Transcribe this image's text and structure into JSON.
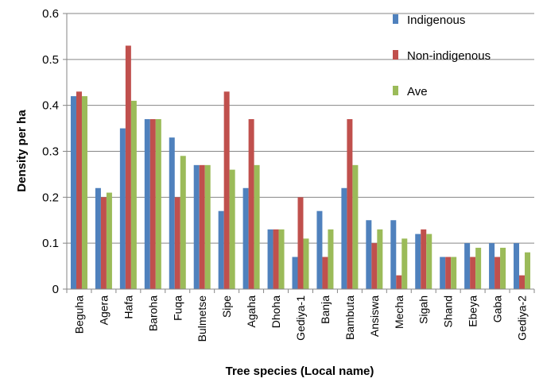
{
  "chart_data": {
    "type": "bar",
    "title": "",
    "xlabel": "Tree species (Local name)",
    "ylabel": "Density per ha",
    "ylim": [
      0,
      0.6
    ],
    "yticks": [
      "0",
      "0.1",
      "0.2",
      "0.3",
      "0.4",
      "0.5",
      "0.6"
    ],
    "grid": true,
    "legend_position": "top-right",
    "categories": [
      "Beguha",
      "Agera",
      "Hafa",
      "Baroha",
      "Fuqa",
      "Bulmetse",
      "Sipe",
      "Agaha",
      "Dhoha",
      "Gediya-1",
      "Banja",
      "Bambuta",
      "Ansiswa",
      "Mecha",
      "Sigah",
      "Shand",
      "Ebeya",
      "Gaba",
      "Gediya-2"
    ],
    "series": [
      {
        "name": "Indigenous",
        "color": "#4F81BD",
        "values": [
          0.42,
          0.22,
          0.35,
          0.37,
          0.33,
          0.27,
          0.17,
          0.22,
          0.13,
          0.07,
          0.17,
          0.22,
          0.15,
          0.15,
          0.12,
          0.07,
          0.1,
          0.1,
          0.1
        ]
      },
      {
        "name": "Non-indigenous",
        "color": "#C0504D",
        "values": [
          0.43,
          0.2,
          0.53,
          0.37,
          0.2,
          0.27,
          0.43,
          0.37,
          0.13,
          0.2,
          0.07,
          0.37,
          0.1,
          0.03,
          0.13,
          0.07,
          0.07,
          0.07,
          0.03
        ]
      },
      {
        "name": "Ave",
        "color": "#9BBB59",
        "values": [
          0.42,
          0.21,
          0.41,
          0.37,
          0.29,
          0.27,
          0.26,
          0.27,
          0.13,
          0.11,
          0.13,
          0.27,
          0.13,
          0.11,
          0.12,
          0.07,
          0.09,
          0.09,
          0.08
        ]
      }
    ]
  }
}
